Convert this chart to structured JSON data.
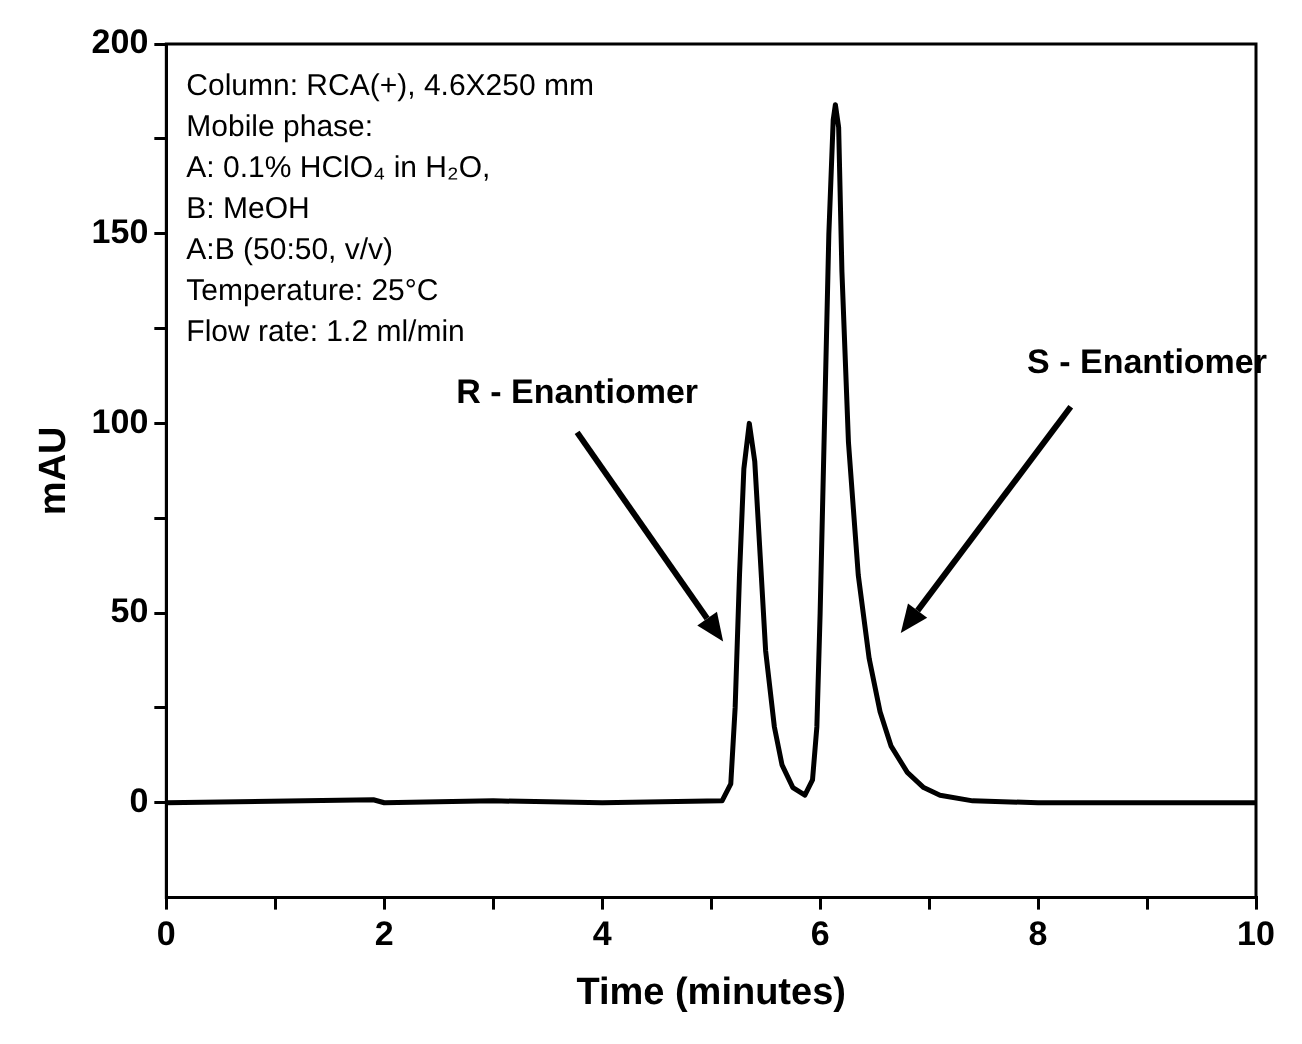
{
  "chart_data": {
    "type": "line",
    "xlabel": "Time (minutes)",
    "ylabel": "mAU",
    "x": [
      0,
      1.9,
      2,
      3,
      4,
      5.1,
      5.18,
      5.22,
      5.26,
      5.3,
      5.35,
      5.4,
      5.45,
      5.5,
      5.58,
      5.65,
      5.75,
      5.86,
      5.93,
      5.97,
      6.0,
      6.04,
      6.08,
      6.12,
      6.14,
      6.17,
      6.2,
      6.26,
      6.35,
      6.45,
      6.55,
      6.65,
      6.8,
      6.95,
      7.1,
      7.4,
      8,
      10
    ],
    "series": [
      {
        "color": "#000000",
        "values": [
          0,
          0.8,
          0,
          0.5,
          0,
          0.5,
          5,
          25,
          60,
          88,
          100,
          90,
          65,
          40,
          20,
          10,
          4,
          2,
          6,
          20,
          50,
          100,
          150,
          180,
          184,
          178,
          140,
          95,
          60,
          38,
          24,
          15,
          8,
          4,
          2,
          0.5,
          0,
          0
        ]
      }
    ],
    "xlim": [
      0,
      10
    ],
    "ylim": [
      -25,
      200
    ],
    "xticks": [
      0,
      {
        "value": 1,
        "label": null
      },
      2,
      {
        "value": 3,
        "label": null
      },
      4,
      {
        "value": 5,
        "label": null
      },
      6,
      {
        "value": 7,
        "label": null
      },
      8,
      {
        "value": 9,
        "label": null
      },
      10
    ],
    "yticks": [
      0,
      {
        "value": 25,
        "label": null
      },
      50,
      {
        "value": 75,
        "label": null
      },
      100,
      {
        "value": 125,
        "label": null
      },
      150,
      {
        "value": 175,
        "label": null
      },
      200
    ],
    "grid": false,
    "legend": false,
    "marker": "none",
    "line_style": "solid",
    "annotations": [
      "Column: RCA(+), 4.6X250 mm",
      "Mobile phase:",
      "A: 0.1% HClO₄ in H₂O,",
      "B: MeOH",
      "A:B (50:50, v/v)",
      "Temperature: 25°C",
      "Flow rate: 1.2 ml/min",
      "R - Enantiomer",
      "S - Enantiomer"
    ]
  }
}
